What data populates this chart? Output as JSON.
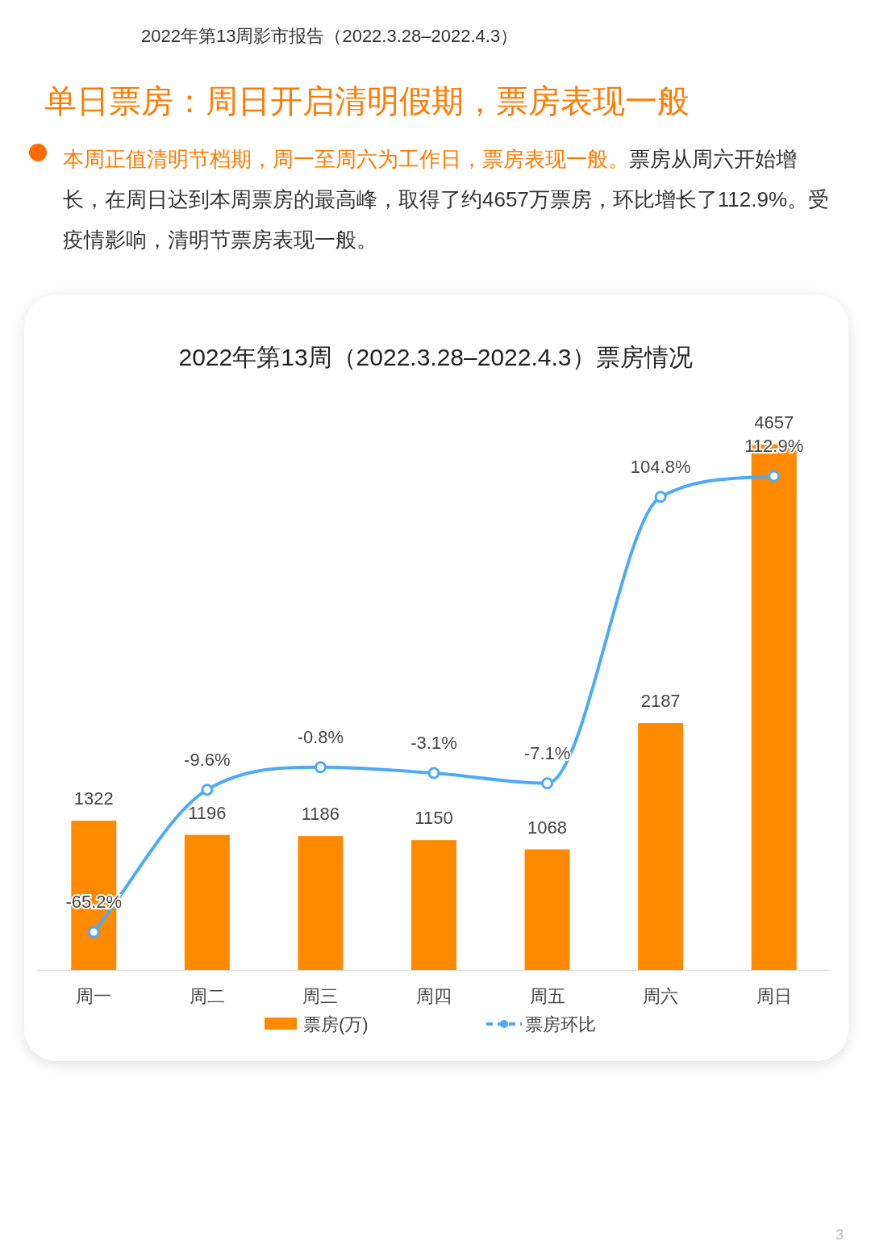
{
  "chart_data": {
    "type": "bar",
    "title": "2022年第13周（2022.3.28–2022.4.3）票房情况",
    "annotations": [
      "2022年第13周影市报告（2022.3.28–2022.4.3）",
      "单日票房：周日开启清明假期，票房表现一般",
      "本周正值清明节档期，周一至周六为工作日，票房表现一般。",
      "票房从周六开始增长，在周日达到本周票房的最高峰，取得了约4657万票房，环比增长了112.9%。受疫情影响，清明节票房表现一般。",
      "3"
    ],
    "categories": [
      "周一",
      "周二",
      "周三",
      "周四",
      "周五",
      "周六",
      "周日"
    ],
    "series": [
      {
        "name": "票房(万)",
        "color": "#ff8a00",
        "values": [
          1322,
          1196,
          1186,
          1150,
          1068,
          2187,
          4657
        ]
      },
      {
        "name": "票房环比",
        "type": "line",
        "axis": "y2",
        "color": "#4eaaf5",
        "marker": "circle",
        "values": [
          -65.2,
          -9.6,
          -0.8,
          -3.1,
          -7.1,
          104.8,
          112.9
        ],
        "value_labels": [
          "-65.2%",
          "-9.6%",
          "-0.8%",
          "-3.1%",
          "-7.1%",
          "104.8%",
          "112.9%"
        ]
      }
    ],
    "data_labels": true,
    "legend": "bottom"
  }
}
